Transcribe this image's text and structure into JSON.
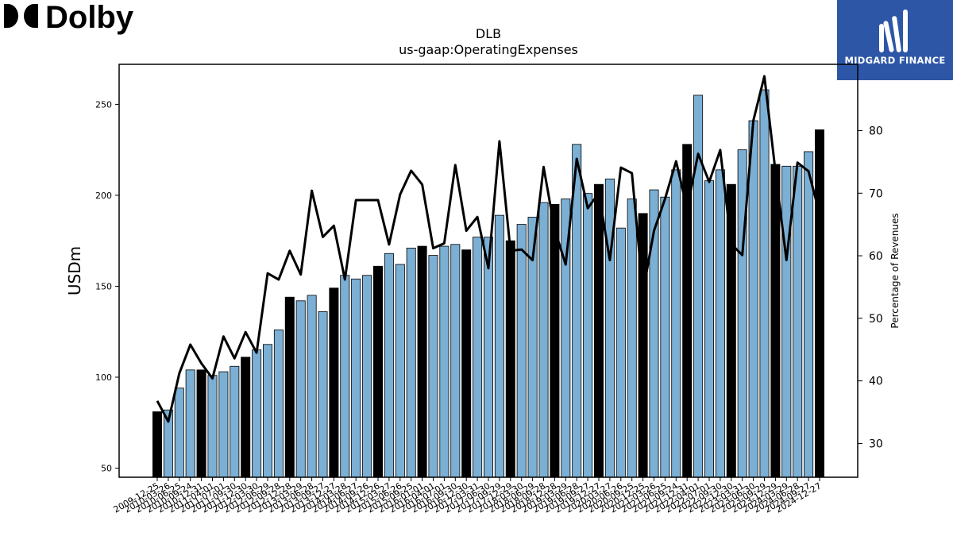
{
  "brand_left": {
    "name": "Dolby"
  },
  "brand_right": {
    "name": "MIDGARD FINANCE"
  },
  "chart_data": {
    "type": "bar",
    "title": "DLB",
    "subtitle": "us-gaap:OperatingExpenses",
    "ylabel": "USDm",
    "y2label": "Percentage of Revenues",
    "ylim": [
      45,
      272
    ],
    "y2lim": [
      24.6,
      90.6
    ],
    "yticks": [
      50,
      100,
      150,
      200,
      250
    ],
    "y2ticks": [
      30,
      40,
      50,
      60,
      70,
      80
    ],
    "grid": false,
    "colors": {
      "bar": "#7bafd4",
      "bar_highlight": "#000000",
      "line": "#000000"
    },
    "categories": [
      "2009-12-25",
      "2010-03-26",
      "2010-06-25",
      "2010-09-24",
      "2010-12-31",
      "2011-04-01",
      "2011-07-01",
      "2011-09-30",
      "2011-12-30",
      "2012-03-30",
      "2012-06-29",
      "2012-09-28",
      "2012-12-28",
      "2013-03-29",
      "2013-06-28",
      "2013-09-27",
      "2013-12-27",
      "2014-03-28",
      "2014-06-27",
      "2014-09-26",
      "2014-12-26",
      "2015-03-27",
      "2015-06-26",
      "2015-09-25",
      "2016-01-01",
      "2016-04-01",
      "2016-07-01",
      "2016-09-30",
      "2016-12-30",
      "2017-03-31",
      "2017-06-30",
      "2017-09-29",
      "2017-12-29",
      "2018-03-30",
      "2018-06-29",
      "2018-09-28",
      "2018-12-28",
      "2019-03-29",
      "2019-06-28",
      "2019-09-27",
      "2019-12-27",
      "2020-03-27",
      "2020-06-26",
      "2020-09-25",
      "2020-12-25",
      "2021-03-26",
      "2021-06-25",
      "2021-09-24",
      "2021-12-31",
      "2022-04-01",
      "2022-07-01",
      "2022-09-30",
      "2022-12-30",
      "2023-03-31",
      "2023-06-30",
      "2023-09-29",
      "2023-12-29",
      "2024-03-29",
      "2024-06-28",
      "2024-09-27",
      "2024-12-27"
    ],
    "series": [
      {
        "type": "bar",
        "values": [
          81,
          82,
          94,
          104,
          104,
          101,
          103,
          106,
          111,
          115,
          118,
          126,
          144,
          142,
          145,
          136,
          149,
          156,
          154,
          156,
          161,
          168,
          162,
          171,
          172,
          167,
          172,
          173,
          170,
          177,
          177,
          189,
          175,
          184,
          188,
          196,
          195,
          198,
          228,
          201,
          206,
          209,
          182,
          198,
          190,
          203,
          199,
          214,
          228,
          255,
          208,
          214,
          206,
          225,
          241,
          258,
          217,
          216,
          216,
          224,
          236
        ],
        "highlight_indices": [
          0,
          4,
          8,
          12,
          16,
          20,
          24,
          28,
          32,
          36,
          40,
          44,
          48,
          52,
          56,
          60
        ]
      },
      {
        "type": "line",
        "axis": "right",
        "values": [
          36.8,
          33.5,
          41.2,
          45.8,
          42.8,
          40.4,
          47.1,
          43.6,
          47.8,
          44.5,
          57.2,
          56.2,
          60.8,
          57.0,
          70.4,
          63.0,
          64.8,
          56.2,
          68.9,
          68.9,
          68.9,
          61.8,
          69.8,
          73.6,
          71.4,
          61.2,
          62.0,
          74.5,
          64.0,
          66.2,
          58.0,
          78.3,
          60.8,
          61.0,
          59.3,
          74.2,
          64.2,
          58.6,
          75.5,
          67.6,
          70.0,
          59.3,
          74.1,
          73.2,
          54.2,
          64.0,
          69.1,
          75.1,
          67.6,
          76.3,
          71.8,
          76.9,
          61.9,
          60.1,
          81.6,
          88.7,
          73.5,
          59.3,
          74.9,
          73.5,
          66.7
        ]
      }
    ]
  }
}
